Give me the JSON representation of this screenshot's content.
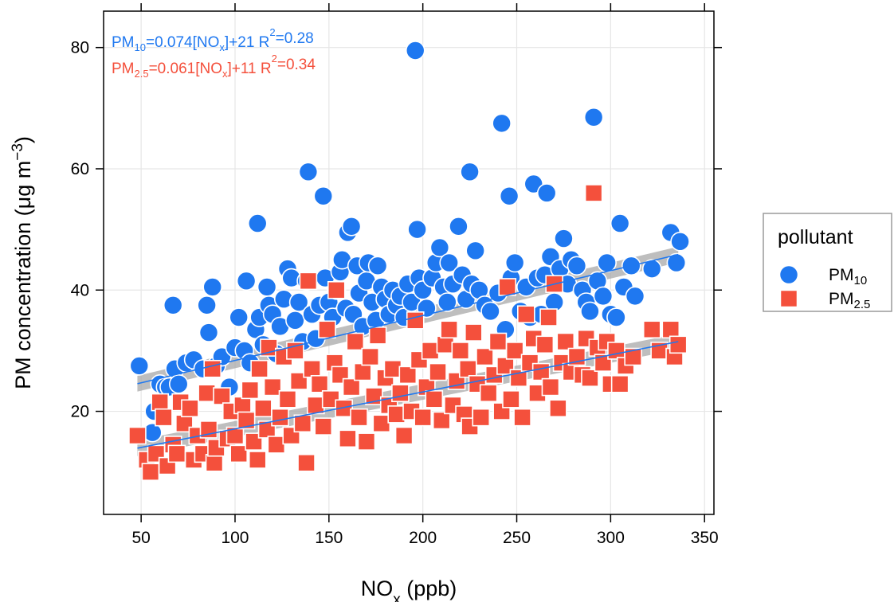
{
  "chart_data": {
    "type": "scatter",
    "xlabel": "NOx (ppb)",
    "ylabel": "PM concentration (μg m−3)",
    "xlim": [
      30,
      355
    ],
    "ylim": [
      3,
      86
    ],
    "x_ticks": [
      50,
      100,
      150,
      200,
      250,
      300,
      350
    ],
    "y_ticks": [
      20,
      40,
      60,
      80
    ],
    "grid": true,
    "colors": {
      "PM10": "#1f78f0",
      "PM2.5": "#f4503c",
      "band": "#a8a8a8",
      "grid": "#e6e6e6"
    },
    "equations": [
      {
        "series": "PM10",
        "parts": [
          "PM",
          "10",
          "=0.074[NO",
          "x",
          "]+21 R",
          "2",
          "=0.28"
        ]
      },
      {
        "series": "PM2.5",
        "parts": [
          "PM",
          "2.5",
          "=0.061[NO",
          "x",
          "]+11 R",
          "2",
          "=0.34"
        ]
      }
    ],
    "legend": {
      "title": "pollutant",
      "placement": "right",
      "entries": [
        {
          "base": "PM",
          "sub": "10",
          "marker": "circle"
        },
        {
          "base": "PM",
          "sub": "2.5",
          "marker": "square"
        }
      ]
    },
    "series": [
      {
        "name": "PM10",
        "marker": "circle",
        "fit": {
          "slope": 0.074,
          "intercept": 21,
          "x_range": [
            48,
            336
          ]
        },
        "points": [
          [
            49,
            27.5
          ],
          [
            56,
            16.5
          ],
          [
            57,
            20
          ],
          [
            60,
            24.5
          ],
          [
            63,
            24
          ],
          [
            65,
            24
          ],
          [
            67,
            37.5
          ],
          [
            68,
            27
          ],
          [
            70,
            24.5
          ],
          [
            74,
            28
          ],
          [
            78,
            28.5
          ],
          [
            83,
            27
          ],
          [
            85,
            37.5
          ],
          [
            86,
            33
          ],
          [
            88,
            40.5
          ],
          [
            90,
            27.5
          ],
          [
            93,
            29
          ],
          [
            97,
            24
          ],
          [
            100,
            30.5
          ],
          [
            102,
            35.5
          ],
          [
            105,
            30
          ],
          [
            106,
            41.5
          ],
          [
            108,
            28
          ],
          [
            111,
            33.5
          ],
          [
            112,
            51
          ],
          [
            113,
            35.5
          ],
          [
            115,
            31
          ],
          [
            117,
            40.5
          ],
          [
            118,
            37.5
          ],
          [
            120,
            36
          ],
          [
            122,
            29.5
          ],
          [
            124,
            34
          ],
          [
            126,
            38.5
          ],
          [
            128,
            43.5
          ],
          [
            130,
            42
          ],
          [
            132,
            35
          ],
          [
            134,
            38
          ],
          [
            136,
            31.5
          ],
          [
            138,
            41.5
          ],
          [
            139,
            59.5
          ],
          [
            141,
            36
          ],
          [
            143,
            32
          ],
          [
            145,
            37.5
          ],
          [
            147,
            55.5
          ],
          [
            148,
            42
          ],
          [
            150,
            38
          ],
          [
            152,
            35.5
          ],
          [
            154,
            40
          ],
          [
            156,
            43
          ],
          [
            157,
            45
          ],
          [
            159,
            37
          ],
          [
            160,
            49.5
          ],
          [
            162,
            50.5
          ],
          [
            163,
            36
          ],
          [
            165,
            44
          ],
          [
            166,
            39.5
          ],
          [
            168,
            34
          ],
          [
            170,
            41.5
          ],
          [
            171,
            44.5
          ],
          [
            173,
            38
          ],
          [
            175,
            35
          ],
          [
            176,
            44
          ],
          [
            178,
            40.5
          ],
          [
            180,
            38.5
          ],
          [
            182,
            36
          ],
          [
            184,
            40
          ],
          [
            186,
            37.5
          ],
          [
            188,
            39
          ],
          [
            190,
            35.5
          ],
          [
            192,
            41
          ],
          [
            194,
            38
          ],
          [
            196,
            79.5
          ],
          [
            197,
            50
          ],
          [
            198,
            42
          ],
          [
            200,
            40
          ],
          [
            202,
            37
          ],
          [
            205,
            42
          ],
          [
            207,
            44.5
          ],
          [
            209,
            47
          ],
          [
            211,
            40.5
          ],
          [
            213,
            38
          ],
          [
            214,
            44.5
          ],
          [
            216,
            41
          ],
          [
            219,
            50.5
          ],
          [
            221,
            42.5
          ],
          [
            223,
            38.5
          ],
          [
            225,
            59.5
          ],
          [
            226,
            41
          ],
          [
            228,
            46.5
          ],
          [
            230,
            40
          ],
          [
            233,
            37.5
          ],
          [
            236,
            36.5
          ],
          [
            240,
            39.5
          ],
          [
            242,
            67.5
          ],
          [
            244,
            33.5
          ],
          [
            246,
            55.5
          ],
          [
            247,
            42
          ],
          [
            249,
            44.5
          ],
          [
            252,
            36.5
          ],
          [
            255,
            40.5
          ],
          [
            257,
            35.5
          ],
          [
            259,
            57.5
          ],
          [
            261,
            42
          ],
          [
            263,
            36
          ],
          [
            265,
            42.5
          ],
          [
            266,
            56
          ],
          [
            268,
            45.5
          ],
          [
            270,
            38
          ],
          [
            273,
            43.5
          ],
          [
            275,
            48.5
          ],
          [
            277,
            41
          ],
          [
            279,
            45
          ],
          [
            282,
            44
          ],
          [
            285,
            40
          ],
          [
            287,
            38
          ],
          [
            289,
            36.5
          ],
          [
            291,
            68.5
          ],
          [
            293,
            41.5
          ],
          [
            296,
            39
          ],
          [
            298,
            44.5
          ],
          [
            300,
            36
          ],
          [
            303,
            35.5
          ],
          [
            305,
            51
          ],
          [
            307,
            40.5
          ],
          [
            311,
            44
          ],
          [
            313,
            39
          ],
          [
            322,
            43.5
          ],
          [
            332,
            49.5
          ],
          [
            335,
            44.5
          ],
          [
            337,
            48
          ]
        ]
      },
      {
        "name": "PM2.5",
        "marker": "square",
        "fit": {
          "slope": 0.061,
          "intercept": 11,
          "x_range": [
            48,
            336
          ]
        },
        "points": [
          [
            48,
            16
          ],
          [
            53,
            12
          ],
          [
            55,
            10
          ],
          [
            58,
            13
          ],
          [
            60,
            21.5
          ],
          [
            62,
            19
          ],
          [
            64,
            11
          ],
          [
            67,
            14.5
          ],
          [
            69,
            13
          ],
          [
            71,
            21.5
          ],
          [
            73,
            18
          ],
          [
            76,
            20.5
          ],
          [
            78,
            12
          ],
          [
            80,
            16
          ],
          [
            83,
            13
          ],
          [
            85,
            23
          ],
          [
            86,
            17
          ],
          [
            88,
            27
          ],
          [
            89,
            11.5
          ],
          [
            90,
            14
          ],
          [
            93,
            22.5
          ],
          [
            96,
            15.5
          ],
          [
            98,
            20
          ],
          [
            100,
            16
          ],
          [
            102,
            13
          ],
          [
            104,
            21
          ],
          [
            106,
            18.5
          ],
          [
            108,
            23.5
          ],
          [
            110,
            15
          ],
          [
            112,
            12
          ],
          [
            113,
            27
          ],
          [
            115,
            20.5
          ],
          [
            117,
            17
          ],
          [
            118,
            30.5
          ],
          [
            120,
            24
          ],
          [
            122,
            14.5
          ],
          [
            124,
            19
          ],
          [
            126,
            29
          ],
          [
            128,
            22
          ],
          [
            130,
            16
          ],
          [
            132,
            30
          ],
          [
            134,
            25
          ],
          [
            136,
            18
          ],
          [
            138,
            11.5
          ],
          [
            139,
            41.5
          ],
          [
            141,
            27
          ],
          [
            143,
            21
          ],
          [
            145,
            24.5
          ],
          [
            147,
            17.5
          ],
          [
            149,
            33.5
          ],
          [
            151,
            22
          ],
          [
            153,
            28
          ],
          [
            154,
            40
          ],
          [
            156,
            26
          ],
          [
            158,
            20.5
          ],
          [
            160,
            15.5
          ],
          [
            162,
            24
          ],
          [
            164,
            31.5
          ],
          [
            166,
            19
          ],
          [
            168,
            26.5
          ],
          [
            170,
            15
          ],
          [
            172,
            29
          ],
          [
            174,
            22.5
          ],
          [
            176,
            32.5
          ],
          [
            178,
            18
          ],
          [
            180,
            25.5
          ],
          [
            182,
            21
          ],
          [
            184,
            27
          ],
          [
            186,
            19.5
          ],
          [
            188,
            23
          ],
          [
            190,
            16
          ],
          [
            192,
            26
          ],
          [
            194,
            20
          ],
          [
            196,
            35
          ],
          [
            198,
            28.5
          ],
          [
            200,
            19
          ],
          [
            202,
            24
          ],
          [
            204,
            30
          ],
          [
            206,
            22
          ],
          [
            208,
            26.5
          ],
          [
            210,
            18.5
          ],
          [
            212,
            31
          ],
          [
            214,
            33.5
          ],
          [
            216,
            21
          ],
          [
            218,
            25
          ],
          [
            220,
            30
          ],
          [
            222,
            19.5
          ],
          [
            224,
            27
          ],
          [
            225,
            17.5
          ],
          [
            227,
            33
          ],
          [
            229,
            24.5
          ],
          [
            231,
            19
          ],
          [
            233,
            29
          ],
          [
            235,
            23
          ],
          [
            238,
            26
          ],
          [
            240,
            31.5
          ],
          [
            242,
            20
          ],
          [
            244,
            27.5
          ],
          [
            245,
            40.5
          ],
          [
            247,
            22
          ],
          [
            249,
            30
          ],
          [
            251,
            25.5
          ],
          [
            253,
            19
          ],
          [
            255,
            36
          ],
          [
            257,
            28
          ],
          [
            259,
            32
          ],
          [
            261,
            23
          ],
          [
            263,
            26.5
          ],
          [
            265,
            31
          ],
          [
            267,
            35.5
          ],
          [
            268,
            24
          ],
          [
            270,
            41
          ],
          [
            272,
            20.5
          ],
          [
            274,
            28
          ],
          [
            276,
            31.5
          ],
          [
            279,
            26.5
          ],
          [
            282,
            29
          ],
          [
            285,
            26
          ],
          [
            287,
            32
          ],
          [
            289,
            25.5
          ],
          [
            291,
            56
          ],
          [
            293,
            30.5
          ],
          [
            296,
            28
          ],
          [
            298,
            31.5
          ],
          [
            300,
            24.5
          ],
          [
            303,
            30
          ],
          [
            305,
            24.5
          ],
          [
            308,
            27.5
          ],
          [
            312,
            29
          ],
          [
            322,
            33.5
          ],
          [
            326,
            30
          ],
          [
            332,
            33.5
          ],
          [
            334,
            29
          ],
          [
            336,
            31
          ]
        ]
      }
    ]
  }
}
